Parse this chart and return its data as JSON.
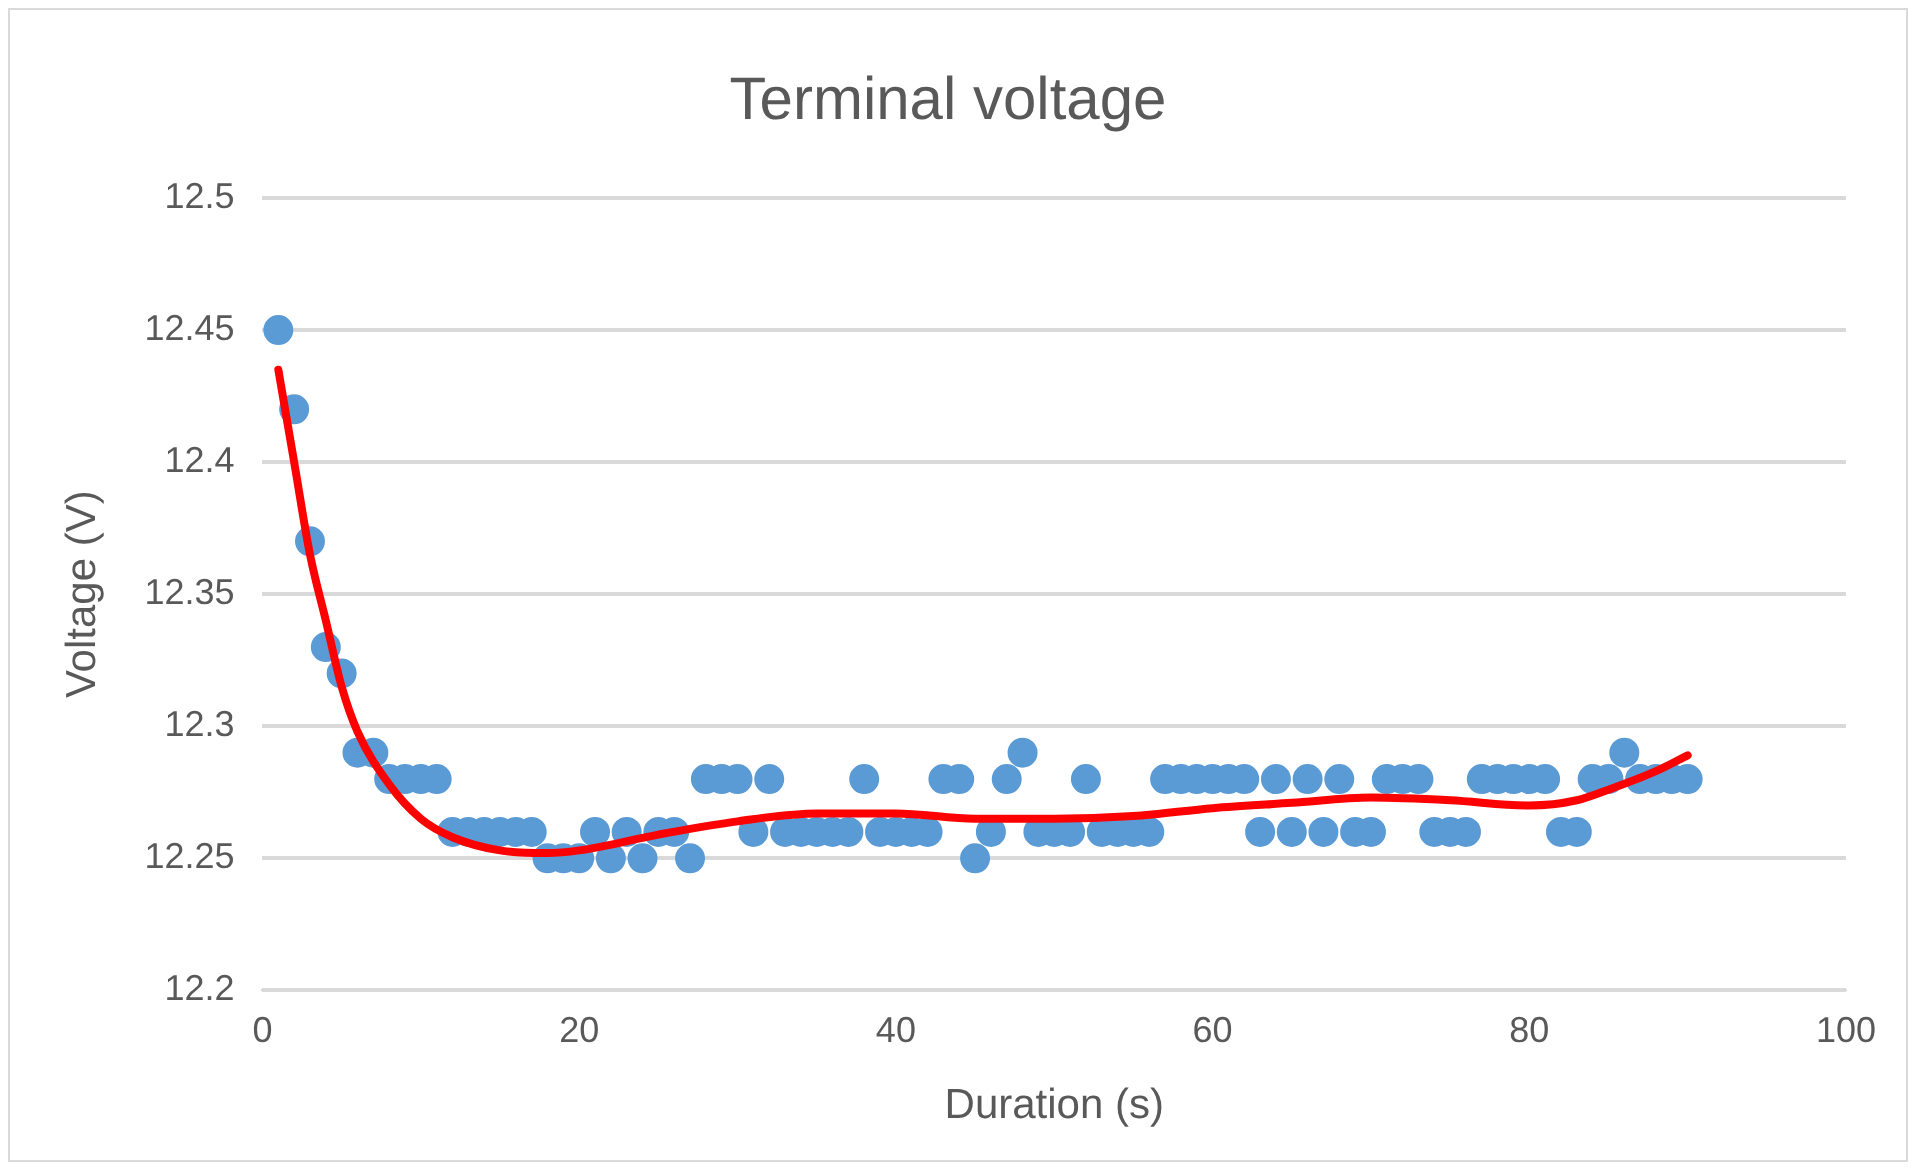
{
  "chart_data": {
    "type": "scatter",
    "title": "Terminal voltage",
    "xlabel": "Duration (s)",
    "ylabel": "Voltage (V)",
    "xlim": [
      0,
      100
    ],
    "xticks": [
      0,
      20,
      40,
      60,
      80,
      100
    ],
    "ylim": [
      12.2,
      12.5
    ],
    "yticks": [
      12.2,
      12.25,
      12.3,
      12.35,
      12.4,
      12.45,
      12.5
    ],
    "grid": "y",
    "legend": false,
    "marker": "circle",
    "series": [
      {
        "color": "#5b9bd5",
        "x": [
          1,
          2,
          3,
          4,
          5,
          6,
          7,
          8,
          9,
          10,
          11,
          12,
          13,
          14,
          15,
          16,
          17,
          18,
          19,
          20,
          21,
          22,
          23,
          24,
          25,
          26,
          27,
          28,
          29,
          30,
          31,
          32,
          33,
          34,
          35,
          36,
          37,
          38,
          39,
          40,
          41,
          42,
          43,
          44,
          45,
          46,
          47,
          48,
          49,
          50,
          51,
          52,
          53,
          54,
          55,
          56,
          57,
          58,
          59,
          60,
          61,
          62,
          63,
          64,
          65,
          66,
          67,
          68,
          69,
          70,
          71,
          72,
          73,
          74,
          75,
          76,
          77,
          78,
          79,
          80,
          81,
          82,
          83,
          84,
          85,
          86,
          87,
          88,
          89,
          90
        ],
        "values": [
          12.45,
          12.42,
          12.37,
          12.33,
          12.32,
          12.29,
          12.29,
          12.28,
          12.28,
          12.28,
          12.28,
          12.26,
          12.26,
          12.26,
          12.26,
          12.26,
          12.26,
          12.25,
          12.25,
          12.25,
          12.26,
          12.25,
          12.26,
          12.25,
          12.26,
          12.26,
          12.25,
          12.28,
          12.28,
          12.28,
          12.26,
          12.28,
          12.26,
          12.26,
          12.26,
          12.26,
          12.26,
          12.28,
          12.26,
          12.26,
          12.26,
          12.26,
          12.28,
          12.28,
          12.25,
          12.26,
          12.28,
          12.29,
          12.26,
          12.26,
          12.26,
          12.28,
          12.26,
          12.26,
          12.26,
          12.26,
          12.28,
          12.28,
          12.28,
          12.28,
          12.28,
          12.28,
          12.26,
          12.28,
          12.26,
          12.28,
          12.26,
          12.28,
          12.26,
          12.26,
          12.28,
          12.28,
          12.28,
          12.26,
          12.26,
          12.26,
          12.28,
          12.28,
          12.28,
          12.28,
          12.28,
          12.26,
          12.26,
          12.28,
          12.28,
          12.29,
          12.28,
          12.28,
          12.28,
          12.28
        ]
      },
      {
        "type": "line",
        "color": "#ff0000",
        "marker": "none",
        "line_style": "solid",
        "x": [
          1,
          2,
          3,
          4,
          5,
          6,
          8,
          10,
          12,
          15,
          18,
          20,
          25,
          30,
          35,
          40,
          45,
          50,
          55,
          60,
          65,
          70,
          75,
          80,
          83,
          85,
          88,
          90
        ],
        "values": [
          12.435,
          12.4,
          12.365,
          12.34,
          12.315,
          12.298,
          12.278,
          12.265,
          12.258,
          12.253,
          12.252,
          12.253,
          12.259,
          12.264,
          12.267,
          12.267,
          12.265,
          12.265,
          12.266,
          12.269,
          12.271,
          12.273,
          12.272,
          12.27,
          12.272,
          12.276,
          12.283,
          12.289
        ]
      }
    ]
  }
}
